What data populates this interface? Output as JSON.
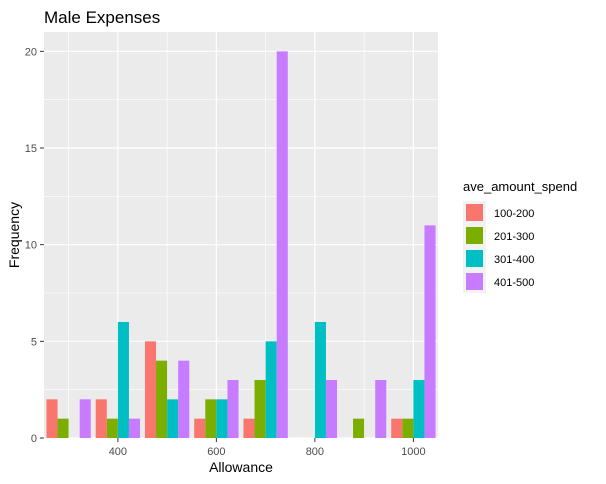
{
  "chart_data": {
    "type": "bar",
    "title": "Male Expenses",
    "xlabel": "Allowance",
    "ylabel": "Frequency",
    "xlim": [
      250,
      1050
    ],
    "ylim": [
      0,
      21
    ],
    "xticks": [
      400,
      600,
      800,
      1000
    ],
    "yticks": [
      0,
      5,
      10,
      15,
      20
    ],
    "grid": true,
    "legend_position": "right",
    "legend_title": "ave_amount_spend",
    "x": [
      300,
      400,
      500,
      600,
      700,
      800,
      900,
      1000
    ],
    "series": [
      {
        "name": "100-200",
        "color": "#F8766D",
        "values": [
          2,
          2,
          5,
          1,
          1,
          0,
          0,
          1
        ]
      },
      {
        "name": "201-300",
        "color": "#7CAE00",
        "values": [
          1,
          1,
          4,
          2,
          3,
          0,
          1,
          1
        ]
      },
      {
        "name": "301-400",
        "color": "#00BFC4",
        "values": [
          0,
          6,
          2,
          2,
          5,
          6,
          0,
          3
        ]
      },
      {
        "name": "401-500",
        "color": "#C77CFF",
        "values": [
          2,
          1,
          4,
          3,
          20,
          3,
          3,
          11
        ]
      }
    ]
  }
}
